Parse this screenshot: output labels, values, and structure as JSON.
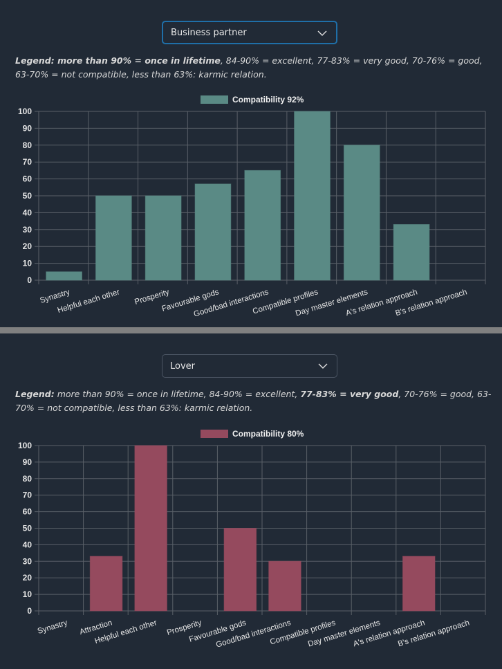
{
  "colors": {
    "background": "#212a36",
    "grid": "#5a6068",
    "separator": "#808080",
    "business_bar": "#5a8a85",
    "lover_bar": "#954a5e",
    "select_focus_border": "#1f6fa8"
  },
  "sections": [
    {
      "select": {
        "value": "Business partner",
        "icon": "chevron-down-icon"
      },
      "legend_text": {
        "label": "Legend:",
        "bold_part": "more than 90% = once in lifetime",
        "parts": [
          {
            "text": "Legend: more than 90% = once in lifetime",
            "bold": true
          },
          {
            "text": ", 84-90% = excellent, 77-83% = very good, 70-76% = good, 63-70% = not compatible, less than 63%: karmic relation.",
            "bold": false
          }
        ]
      }
    },
    {
      "select": {
        "value": "Lover",
        "icon": "chevron-down-icon"
      },
      "legend_text": {
        "parts": [
          {
            "text": "Legend:",
            "bold": true
          },
          {
            "text": " more than 90% = once in lifetime, 84-90% = excellent, ",
            "bold": false
          },
          {
            "text": "77-83% = very good",
            "bold": true
          },
          {
            "text": ", 70-76% = good, 63-70% = not compatible, less than 63%: karmic relation.",
            "bold": false
          }
        ]
      }
    }
  ],
  "chart_data": [
    {
      "type": "bar",
      "title": "",
      "legend": "Compatibility 92%",
      "legend_position": "top-center",
      "categories": [
        "Synastry",
        "Helpful each other",
        "Prosperity",
        "Favourable gods",
        "Good/bad interactions",
        "Compatible profiles",
        "Day master elements",
        "A's relation approach",
        "B's relation approach"
      ],
      "series": [
        {
          "name": "Compatibility 92%",
          "values": [
            5,
            50,
            50,
            57,
            65,
            100,
            80,
            33,
            0
          ],
          "color": "#5a8a85"
        }
      ],
      "xlabel": "",
      "ylabel": "",
      "ylim": [
        0,
        100
      ],
      "yticks": [
        0,
        10,
        20,
        30,
        40,
        50,
        60,
        70,
        80,
        90,
        100
      ],
      "grid": true
    },
    {
      "type": "bar",
      "title": "",
      "legend": "Compatibility 80%",
      "legend_position": "top-center",
      "categories": [
        "Synastry",
        "Attraction",
        "Helpful each other",
        "Prosperity",
        "Favourable gods",
        "Good/bad interactions",
        "Compatible profiles",
        "Day master elements",
        "A's relation approach",
        "B's relation approach"
      ],
      "series": [
        {
          "name": "Compatibility 80%",
          "values": [
            0,
            33,
            100,
            0,
            50,
            30,
            0,
            0,
            33,
            0
          ],
          "color": "#954a5e"
        }
      ],
      "xlabel": "",
      "ylabel": "",
      "ylim": [
        0,
        100
      ],
      "yticks": [
        0,
        10,
        20,
        30,
        40,
        50,
        60,
        70,
        80,
        90,
        100
      ],
      "grid": true
    }
  ]
}
